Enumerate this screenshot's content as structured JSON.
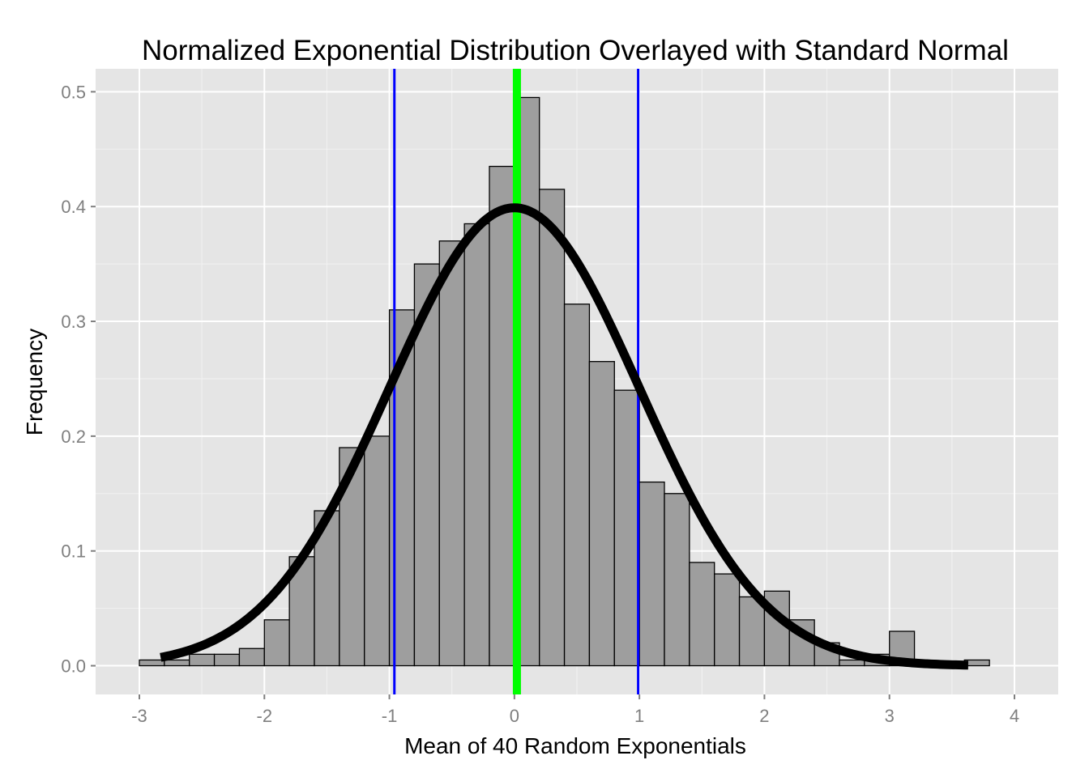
{
  "chart_data": {
    "type": "bar",
    "title": "Normalized Exponential Distribution Overlayed with Standard Normal",
    "xlabel": "Mean of 40 Random Exponentials",
    "ylabel": "Frequency",
    "xlim": [
      -3.35,
      4.35
    ],
    "ylim": [
      -0.025,
      0.52
    ],
    "x_ticks": [
      -3,
      -2,
      -1,
      0,
      1,
      2,
      3,
      4
    ],
    "x_tick_labels": [
      "-3",
      "-2",
      "-1",
      "0",
      "1",
      "2",
      "3",
      "4"
    ],
    "y_ticks": [
      0.0,
      0.1,
      0.2,
      0.3,
      0.4,
      0.5
    ],
    "y_tick_labels": [
      "0.0",
      "0.1",
      "0.2",
      "0.3",
      "0.4",
      "0.5"
    ],
    "grid": true,
    "histogram": {
      "binwidth": 0.2,
      "bins": [
        {
          "x0": -3.2,
          "x1": -3.0,
          "value": 0.0
        },
        {
          "x0": -3.0,
          "x1": -2.8,
          "value": 0.005
        },
        {
          "x0": -2.8,
          "x1": -2.6,
          "value": 0.005
        },
        {
          "x0": -2.6,
          "x1": -2.4,
          "value": 0.01
        },
        {
          "x0": -2.4,
          "x1": -2.2,
          "value": 0.01
        },
        {
          "x0": -2.2,
          "x1": -2.0,
          "value": 0.015
        },
        {
          "x0": -2.0,
          "x1": -1.8,
          "value": 0.04
        },
        {
          "x0": -1.8,
          "x1": -1.6,
          "value": 0.095
        },
        {
          "x0": -1.6,
          "x1": -1.4,
          "value": 0.135
        },
        {
          "x0": -1.4,
          "x1": -1.2,
          "value": 0.19
        },
        {
          "x0": -1.2,
          "x1": -1.0,
          "value": 0.2
        },
        {
          "x0": -1.0,
          "x1": -0.8,
          "value": 0.31
        },
        {
          "x0": -0.8,
          "x1": -0.6,
          "value": 0.35
        },
        {
          "x0": -0.6,
          "x1": -0.4,
          "value": 0.37
        },
        {
          "x0": -0.4,
          "x1": -0.2,
          "value": 0.385
        },
        {
          "x0": -0.2,
          "x1": 0.0,
          "value": 0.435
        },
        {
          "x0": 0.0,
          "x1": 0.2,
          "value": 0.495
        },
        {
          "x0": 0.2,
          "x1": 0.4,
          "value": 0.415
        },
        {
          "x0": 0.4,
          "x1": 0.6,
          "value": 0.315
        },
        {
          "x0": 0.6,
          "x1": 0.8,
          "value": 0.265
        },
        {
          "x0": 0.8,
          "x1": 1.0,
          "value": 0.24
        },
        {
          "x0": 1.0,
          "x1": 1.2,
          "value": 0.16
        },
        {
          "x0": 1.2,
          "x1": 1.4,
          "value": 0.15
        },
        {
          "x0": 1.4,
          "x1": 1.6,
          "value": 0.09
        },
        {
          "x0": 1.6,
          "x1": 1.8,
          "value": 0.08
        },
        {
          "x0": 1.8,
          "x1": 2.0,
          "value": 0.06
        },
        {
          "x0": 2.0,
          "x1": 2.2,
          "value": 0.065
        },
        {
          "x0": 2.2,
          "x1": 2.4,
          "value": 0.04
        },
        {
          "x0": 2.4,
          "x1": 2.6,
          "value": 0.02
        },
        {
          "x0": 2.6,
          "x1": 2.8,
          "value": 0.005
        },
        {
          "x0": 2.8,
          "x1": 3.0,
          "value": 0.01
        },
        {
          "x0": 3.0,
          "x1": 3.2,
          "value": 0.03
        },
        {
          "x0": 3.2,
          "x1": 3.4,
          "value": 0.0
        },
        {
          "x0": 3.4,
          "x1": 3.6,
          "value": 0.0
        },
        {
          "x0": 3.6,
          "x1": 3.8,
          "value": 0.005
        },
        {
          "x0": 3.8,
          "x1": 4.0,
          "value": 0.0
        }
      ],
      "fill": "#9e9e9e",
      "stroke": "#000000"
    },
    "normal_curve": {
      "mean": 0,
      "sd": 1,
      "x_range": [
        -2.83,
        3.63
      ],
      "color": "#000000"
    },
    "vertical_lines": [
      {
        "name": "mean-line",
        "x": 0.02,
        "color": "#00ff00"
      },
      {
        "name": "lower-sd-line",
        "x": -0.96,
        "color": "#0000ff"
      },
      {
        "name": "upper-sd-line",
        "x": 0.99,
        "color": "#0000ff"
      }
    ],
    "colors": {
      "panel_background": "#e5e5e5",
      "grid_major": "#ffffff",
      "grid_minor": "#f2f2f2"
    }
  }
}
